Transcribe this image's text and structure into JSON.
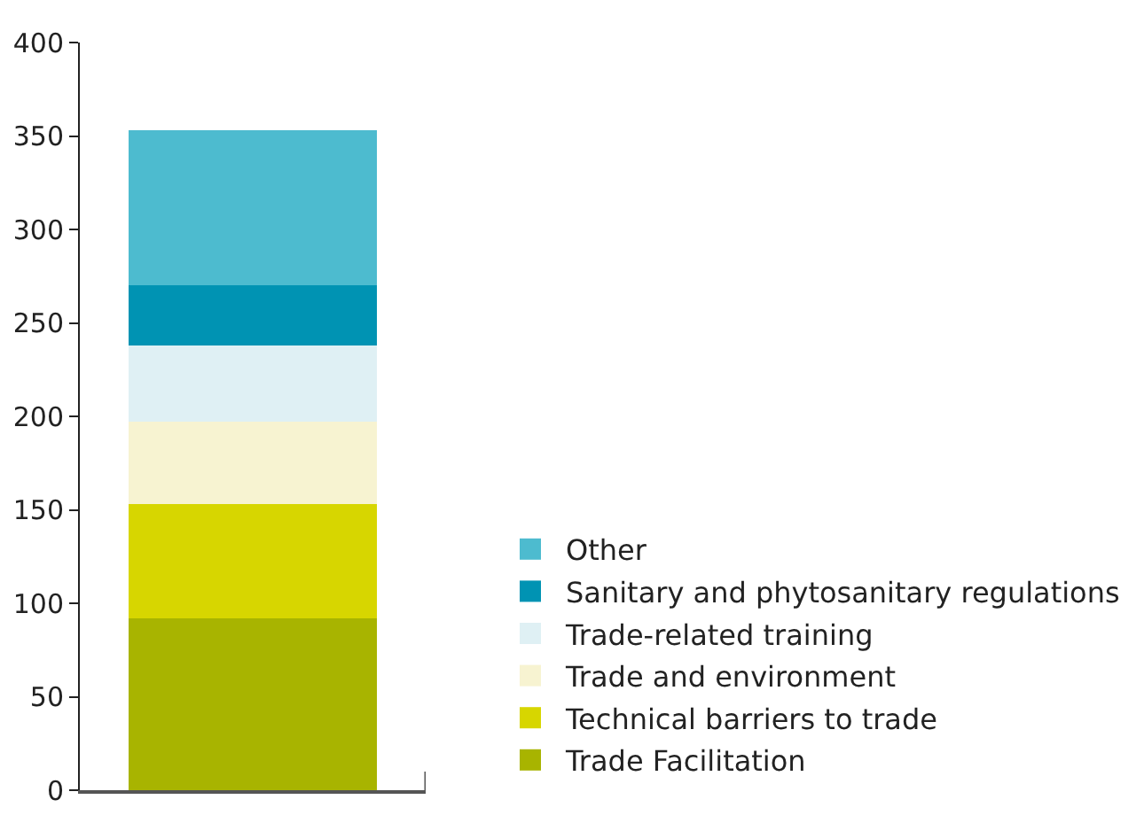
{
  "chart_data": {
    "type": "bar",
    "stacked": true,
    "categories": [
      null
    ],
    "series": [
      {
        "name": "Trade Facilitation",
        "color": "#a8b400",
        "values": [
          92
        ]
      },
      {
        "name": "Technical barriers to trade",
        "color": "#d7d600",
        "values": [
          61
        ]
      },
      {
        "name": "Trade and environment",
        "color": "#f7f3d1",
        "values": [
          44
        ]
      },
      {
        "name": "Trade-related training",
        "color": "#dff0f4",
        "values": [
          41
        ]
      },
      {
        "name": "Sanitary and phytosanitary regulations",
        "color": "#0093b3",
        "values": [
          32
        ]
      },
      {
        "name": "Other",
        "color": "#4dbbcf",
        "values": [
          83
        ]
      }
    ],
    "ylim": [
      0,
      400
    ],
    "yticks": [
      0,
      50,
      100,
      150,
      200,
      250,
      300,
      350,
      400
    ],
    "legend": "bottom right"
  }
}
